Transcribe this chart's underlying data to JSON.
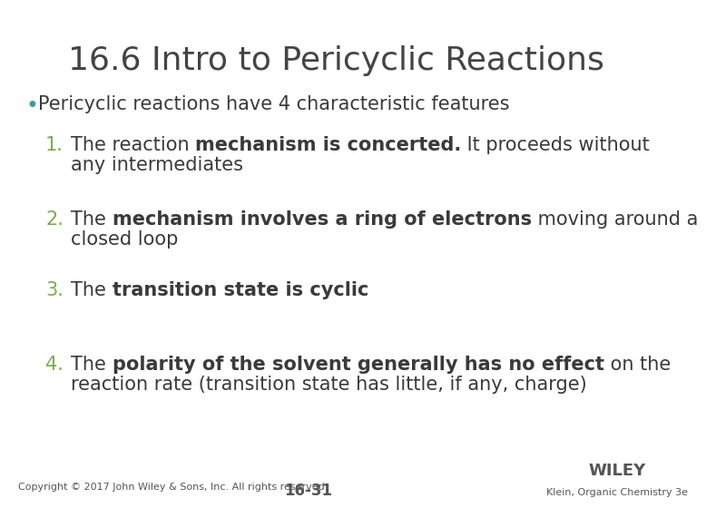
{
  "title": "16.6 Intro to Pericyclic Reactions",
  "title_color": "#444444",
  "title_fontsize": 26,
  "bg_color": "#ffffff",
  "bullet_color": "#3a9ea5",
  "bullet_text": "Pericyclic reactions have 4 characteristic features",
  "bullet_fontsize": 15,
  "number_color": "#7aab52",
  "number_fontsize": 15,
  "body_fontsize": 15,
  "body_color": "#3a3a3a",
  "items": [
    {
      "number": "1.",
      "line1_before": "The reaction ",
      "line1_bold": "mechanism is concerted",
      "line1_bold_suffix": ".",
      "line1_after": " It proceeds without",
      "line2": "any intermediates"
    },
    {
      "number": "2.",
      "line1_before": "The ",
      "line1_bold": "mechanism involves a ring of electrons",
      "line1_bold_suffix": "",
      "line1_after": " moving around a",
      "line2": "closed loop"
    },
    {
      "number": "3.",
      "line1_before": "The ",
      "line1_bold": "transition state is cyclic",
      "line1_bold_suffix": "",
      "line1_after": "",
      "line2": ""
    },
    {
      "number": "4.",
      "line1_before": "The ",
      "line1_bold": "polarity of the solvent generally has no effect",
      "line1_bold_suffix": "",
      "line1_after": " on the",
      "line2": "reaction rate (transition state has little, if any, charge)"
    }
  ],
  "footer_left": "Copyright © 2017 John Wiley & Sons, Inc. All rights reserved.",
  "footer_center": "16-31",
  "footer_right_line1": "WILEY",
  "footer_right_line2": "Klein, Organic Chemistry 3e",
  "footer_fontsize": 8,
  "footer_color": "#555555"
}
